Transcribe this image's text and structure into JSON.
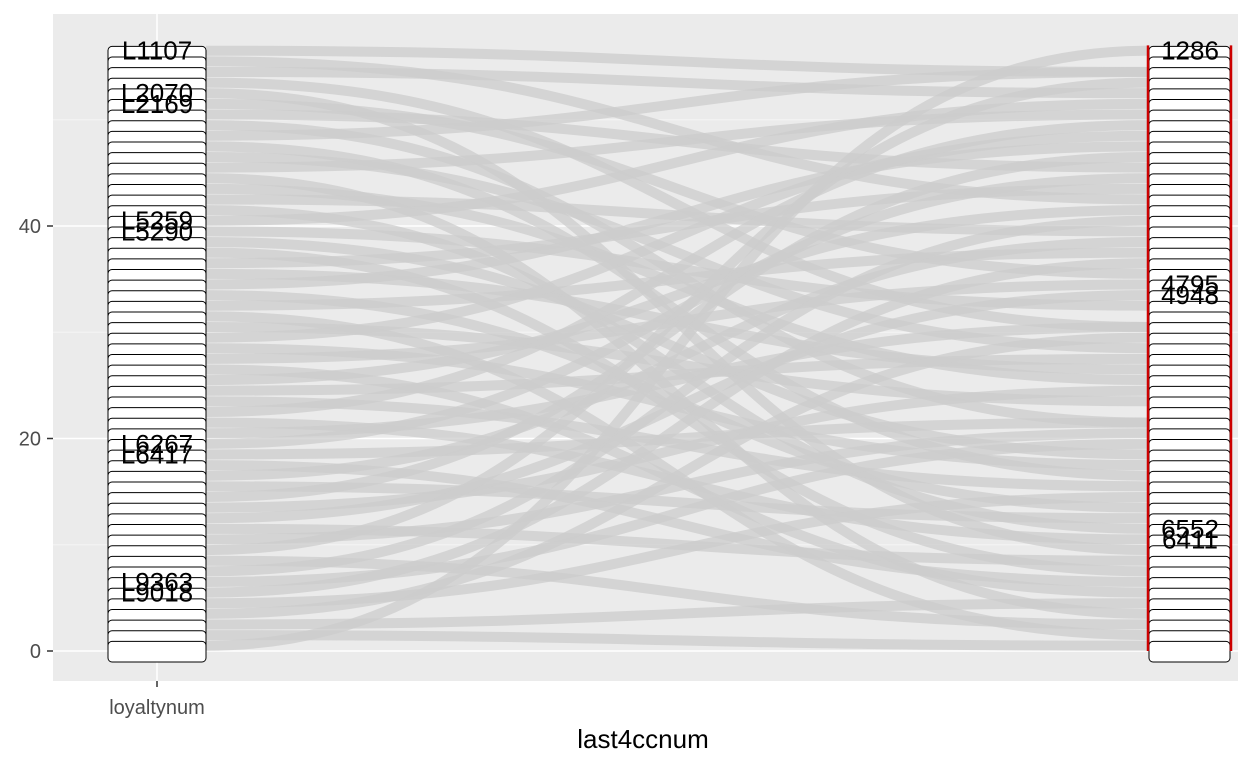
{
  "chart_data": {
    "type": "alluvial",
    "xlabel": "last4ccnum",
    "ylabel": "",
    "x_axes": [
      "loyaltynum"
    ],
    "ylim": [
      0,
      57
    ],
    "y_ticks": [
      0,
      20,
      40
    ],
    "y_tick_labels": [
      "0",
      "20",
      "40"
    ],
    "grid": true,
    "left_axis_visible_labels": [
      "L1107",
      "L2070",
      "L2169",
      "L5259",
      "L5290",
      "L6267",
      "L6417",
      "L9363",
      "L9018"
    ],
    "right_axis_visible_labels": [
      "1286",
      "4795",
      "4948",
      "6552",
      "6411"
    ],
    "flows": [
      [
        57,
        55
      ],
      [
        56,
        43
      ],
      [
        55,
        53
      ],
      [
        54,
        31
      ],
      [
        53,
        10
      ],
      [
        52,
        36
      ],
      [
        51,
        46
      ],
      [
        50,
        22
      ],
      [
        49,
        55
      ],
      [
        48,
        17
      ],
      [
        47,
        29
      ],
      [
        46,
        51
      ],
      [
        45,
        4
      ],
      [
        44,
        26
      ],
      [
        43,
        40
      ],
      [
        42,
        12
      ],
      [
        41,
        52
      ],
      [
        40,
        33
      ],
      [
        39,
        19
      ],
      [
        38,
        8
      ],
      [
        37,
        44
      ],
      [
        36,
        27
      ],
      [
        35,
        48
      ],
      [
        34,
        14
      ],
      [
        33,
        38
      ],
      [
        32,
        2
      ],
      [
        31,
        24
      ],
      [
        30,
        49
      ],
      [
        29,
        18
      ],
      [
        28,
        35
      ],
      [
        27,
        6
      ],
      [
        26,
        42
      ],
      [
        25,
        28
      ],
      [
        24,
        16
      ],
      [
        23,
        50
      ],
      [
        22,
        11
      ],
      [
        21,
        31
      ],
      [
        20,
        45
      ],
      [
        19,
        22
      ],
      [
        18,
        7
      ],
      [
        17,
        39
      ],
      [
        16,
        13
      ],
      [
        15,
        47
      ],
      [
        14,
        25
      ],
      [
        13,
        34
      ],
      [
        12,
        9
      ],
      [
        11,
        21
      ],
      [
        10,
        54
      ],
      [
        9,
        3
      ],
      [
        8,
        41
      ],
      [
        7,
        20
      ],
      [
        6,
        37
      ],
      [
        5,
        15
      ],
      [
        4,
        30
      ],
      [
        3,
        5
      ],
      [
        2,
        1
      ],
      [
        1,
        57
      ]
    ],
    "colors": {
      "panel": "#ebebeb",
      "grid_major": "#ffffff",
      "grid_minor": "#f5f5f5",
      "flow": "#cccccc",
      "stratum_fill": "#ffffff",
      "stratum_border": "#000000",
      "highlight_line": "#cc0000",
      "tick_text": "#4d4d4d"
    }
  }
}
